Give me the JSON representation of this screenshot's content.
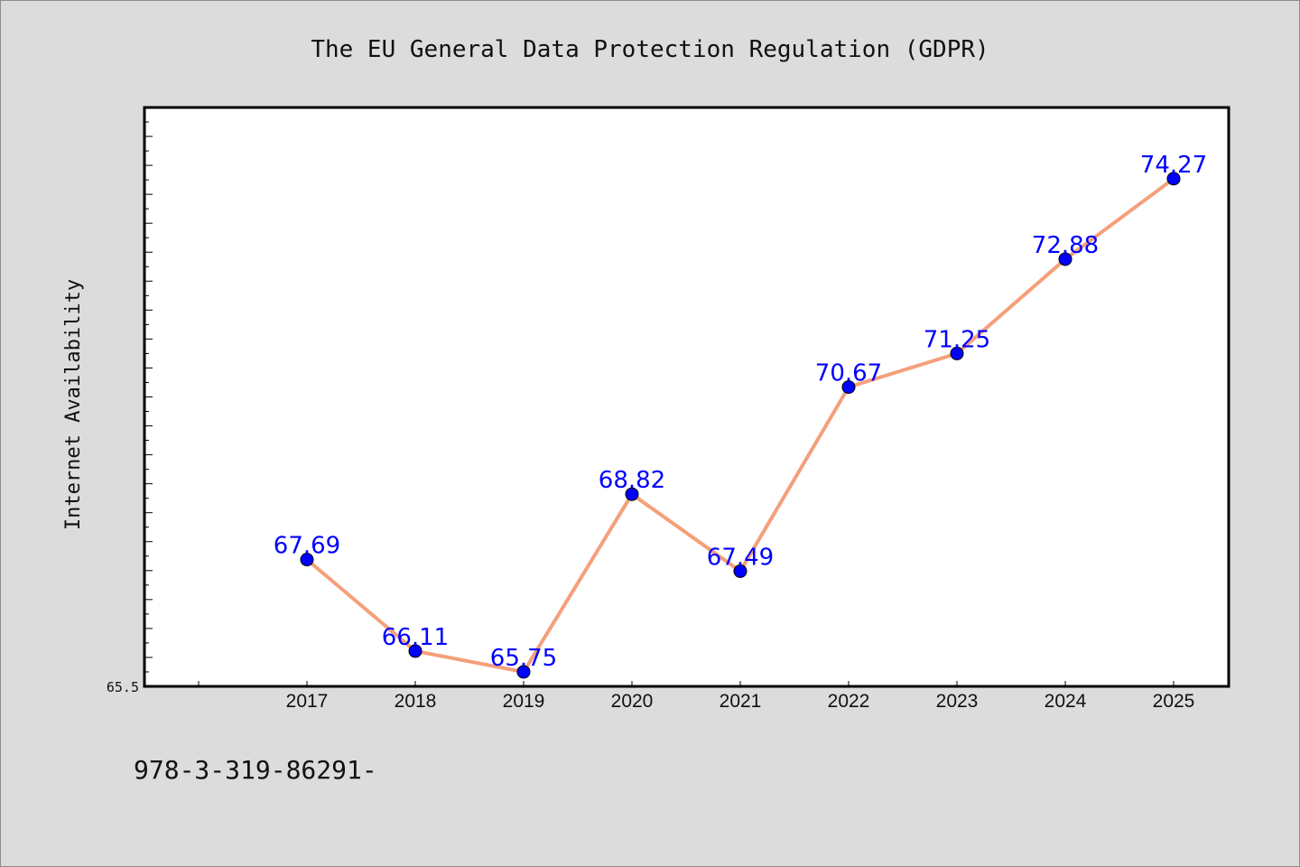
{
  "chart_data": {
    "type": "line",
    "title": "The EU General Data Protection Regulation (GDPR)",
    "xlabel": "",
    "ylabel": "Internet Availability",
    "x": [
      "2017",
      "2018",
      "2019",
      "2020",
      "2021",
      "2022",
      "2023",
      "2024",
      "2025"
    ],
    "series": [
      {
        "values": [
          67.69,
          66.11,
          65.75,
          68.82,
          67.49,
          70.67,
          71.25,
          72.88,
          74.27
        ]
      }
    ],
    "data_labels": [
      "67.69",
      "66.11",
      "65.75",
      "68.82",
      "67.49",
      "70.67",
      "71.25",
      "72.88",
      "74.27"
    ],
    "ylim": [
      65.5,
      75.5
    ],
    "y_tick_labels": [
      "65.5"
    ],
    "grid": false,
    "legend": "none",
    "colors": {
      "line": "#f4a07a",
      "marker": "#0000ff",
      "label": "#0000ff",
      "background": "#dcdcdc",
      "plot_background": "#ffffff"
    }
  },
  "footer_text": "978-3-319-86291-"
}
